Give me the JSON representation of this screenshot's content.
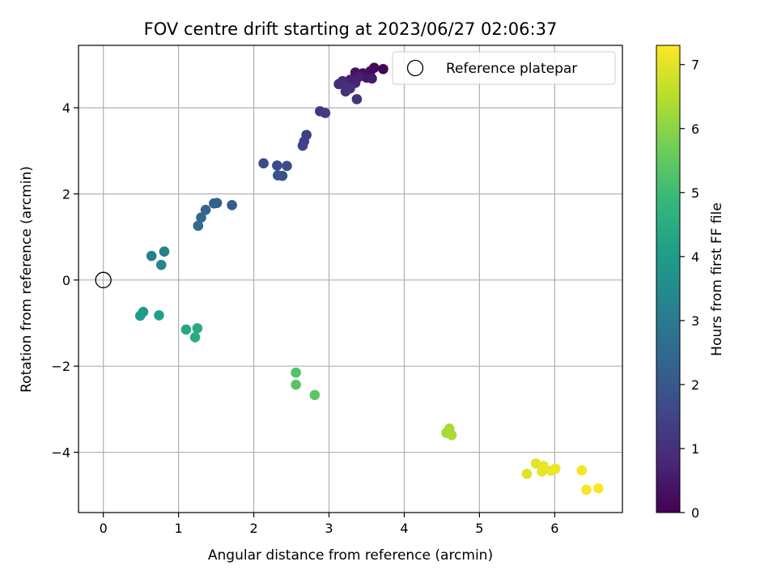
{
  "chart_data": {
    "type": "scatter",
    "title": "FOV centre drift starting at 2023/06/27 02:06:37",
    "xlabel": "Angular distance from reference (arcmin)",
    "ylabel": "Rotation from reference (arcmin)",
    "xlim": [
      -0.33,
      6.9
    ],
    "ylim": [
      -5.4,
      5.45
    ],
    "xticks": [
      0,
      1,
      2,
      3,
      4,
      5,
      6
    ],
    "yticks": [
      -4,
      -2,
      0,
      2,
      4
    ],
    "ytick_labels": [
      "−4",
      "−2",
      "0",
      "2",
      "4"
    ],
    "grid": true,
    "colormap": "viridis",
    "colorbar": {
      "label": "Hours from first FF file",
      "range": [
        0,
        7.3
      ],
      "ticks": [
        0,
        1,
        2,
        3,
        4,
        5,
        6,
        7
      ]
    },
    "legend": {
      "position": "top-right",
      "entries": [
        "Reference platepar"
      ]
    },
    "reference_point": {
      "x": 0,
      "y": 0
    },
    "points": [
      {
        "x": 3.72,
        "y": 4.9,
        "h": 0.05
      },
      {
        "x": 3.6,
        "y": 4.93,
        "h": 0.12
      },
      {
        "x": 3.55,
        "y": 4.85,
        "h": 0.2
      },
      {
        "x": 3.45,
        "y": 4.8,
        "h": 0.28
      },
      {
        "x": 3.35,
        "y": 4.82,
        "h": 0.35
      },
      {
        "x": 3.5,
        "y": 4.7,
        "h": 0.42
      },
      {
        "x": 3.57,
        "y": 4.68,
        "h": 0.5
      },
      {
        "x": 3.4,
        "y": 4.72,
        "h": 0.58
      },
      {
        "x": 3.28,
        "y": 4.65,
        "h": 0.65
      },
      {
        "x": 3.35,
        "y": 4.58,
        "h": 0.72
      },
      {
        "x": 3.18,
        "y": 4.62,
        "h": 0.8
      },
      {
        "x": 3.13,
        "y": 4.55,
        "h": 0.88
      },
      {
        "x": 3.22,
        "y": 4.5,
        "h": 0.95
      },
      {
        "x": 3.28,
        "y": 4.45,
        "h": 1.0
      },
      {
        "x": 3.22,
        "y": 4.38,
        "h": 1.05
      },
      {
        "x": 3.37,
        "y": 4.2,
        "h": 1.1
      },
      {
        "x": 2.88,
        "y": 3.92,
        "h": 1.18
      },
      {
        "x": 2.95,
        "y": 3.88,
        "h": 1.25
      },
      {
        "x": 2.7,
        "y": 3.37,
        "h": 1.35
      },
      {
        "x": 2.67,
        "y": 3.22,
        "h": 1.42
      },
      {
        "x": 2.65,
        "y": 3.12,
        "h": 1.5
      },
      {
        "x": 2.13,
        "y": 2.71,
        "h": 1.62
      },
      {
        "x": 2.31,
        "y": 2.66,
        "h": 1.7
      },
      {
        "x": 2.44,
        "y": 2.65,
        "h": 1.75
      },
      {
        "x": 2.32,
        "y": 2.43,
        "h": 1.8
      },
      {
        "x": 2.38,
        "y": 2.42,
        "h": 1.85
      },
      {
        "x": 1.71,
        "y": 1.74,
        "h": 2.1
      },
      {
        "x": 1.51,
        "y": 1.79,
        "h": 2.2
      },
      {
        "x": 1.47,
        "y": 1.78,
        "h": 2.28
      },
      {
        "x": 1.36,
        "y": 1.63,
        "h": 2.38
      },
      {
        "x": 1.3,
        "y": 1.45,
        "h": 2.45
      },
      {
        "x": 1.26,
        "y": 1.26,
        "h": 2.55
      },
      {
        "x": 0.64,
        "y": 0.56,
        "h": 3.15
      },
      {
        "x": 0.81,
        "y": 0.66,
        "h": 3.22
      },
      {
        "x": 0.77,
        "y": 0.35,
        "h": 3.3
      },
      {
        "x": 0.53,
        "y": -0.74,
        "h": 4.0
      },
      {
        "x": 0.49,
        "y": -0.83,
        "h": 4.05
      },
      {
        "x": 0.74,
        "y": -0.82,
        "h": 4.12
      },
      {
        "x": 1.1,
        "y": -1.15,
        "h": 4.35
      },
      {
        "x": 1.25,
        "y": -1.12,
        "h": 4.42
      },
      {
        "x": 1.22,
        "y": -1.33,
        "h": 4.5
      },
      {
        "x": 2.56,
        "y": -2.15,
        "h": 5.3
      },
      {
        "x": 2.56,
        "y": -2.43,
        "h": 5.35
      },
      {
        "x": 2.81,
        "y": -2.67,
        "h": 5.42
      },
      {
        "x": 4.56,
        "y": -3.55,
        "h": 6.28
      },
      {
        "x": 4.6,
        "y": -3.45,
        "h": 6.32
      },
      {
        "x": 4.63,
        "y": -3.6,
        "h": 6.36
      },
      {
        "x": 5.63,
        "y": -4.5,
        "h": 6.95
      },
      {
        "x": 5.75,
        "y": -4.26,
        "h": 7.0
      },
      {
        "x": 5.83,
        "y": -4.45,
        "h": 7.05
      },
      {
        "x": 5.85,
        "y": -4.32,
        "h": 7.08
      },
      {
        "x": 5.95,
        "y": -4.43,
        "h": 7.12
      },
      {
        "x": 6.01,
        "y": -4.38,
        "h": 7.15
      },
      {
        "x": 6.36,
        "y": -4.42,
        "h": 7.2
      },
      {
        "x": 6.42,
        "y": -4.87,
        "h": 7.25
      },
      {
        "x": 6.58,
        "y": -4.84,
        "h": 7.3
      }
    ]
  }
}
